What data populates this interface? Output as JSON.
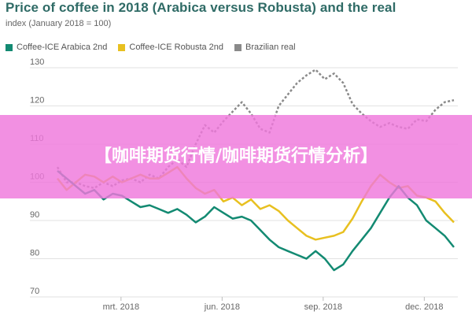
{
  "banner": {
    "text": "【咖啡期货行情/咖啡期货行情分析】"
  },
  "chart_data": {
    "type": "line",
    "title": "Price of coffee in 2018 (Arabica versus Robusta) and the real",
    "subtitle": "index (January 2018 = 100)",
    "ylim": [
      70,
      130
    ],
    "y_ticks": [
      70,
      80,
      90,
      100,
      110,
      120,
      130
    ],
    "grid": true,
    "legend_position": "top-left",
    "x_ticks": [
      {
        "label": "mrt. 2018",
        "t": 0.167
      },
      {
        "label": "jun. 2018",
        "t": 0.417
      },
      {
        "label": "sep. 2018",
        "t": 0.667
      },
      {
        "label": "dec. 2018",
        "t": 0.917
      }
    ],
    "x_range": [
      "jan. 2018",
      "dec. 2018"
    ],
    "series": [
      {
        "name": "Coffee-ICE Arabica 2nd",
        "color": "#138a72",
        "dash": false,
        "values": [
          103,
          101,
          99,
          97,
          98,
          95.5,
          97,
          96.5,
          95,
          93.5,
          94,
          93,
          92,
          93,
          91.5,
          89.5,
          91,
          93.5,
          92,
          90.5,
          91,
          90,
          87.5,
          85,
          83,
          82,
          81,
          80,
          82,
          80,
          77,
          78.5,
          82,
          85,
          88,
          92,
          96,
          99,
          96,
          94,
          90,
          88,
          86,
          83
        ]
      },
      {
        "name": "Coffee-ICE Robusta 2nd",
        "color": "#e8c020",
        "dash": false,
        "values": [
          101,
          98,
          100,
          102,
          101.5,
          100,
          101.5,
          100,
          101,
          102,
          101,
          101,
          102.5,
          104,
          101,
          98.5,
          97,
          98,
          95,
          96,
          94,
          95.5,
          93,
          94,
          92.5,
          90,
          88,
          86,
          85,
          85.5,
          86,
          87,
          90.5,
          95,
          99,
          102,
          100,
          98.5,
          99,
          96.5,
          96,
          95,
          92,
          89.5
        ]
      },
      {
        "name": "Brazilian real",
        "color": "#8a8a8a",
        "dash": true,
        "values": [
          104,
          100,
          100,
          99,
          98.5,
          100,
          99,
          100.5,
          101,
          100,
          102,
          101,
          104,
          106,
          104,
          110,
          115,
          113,
          116,
          118.5,
          121,
          118,
          114,
          113,
          120,
          123,
          126,
          128,
          129.5,
          127,
          128.5,
          126,
          120.5,
          118,
          116,
          114.5,
          115.5,
          114.5,
          114,
          116.5,
          116,
          119,
          121,
          121.5
        ]
      }
    ]
  }
}
